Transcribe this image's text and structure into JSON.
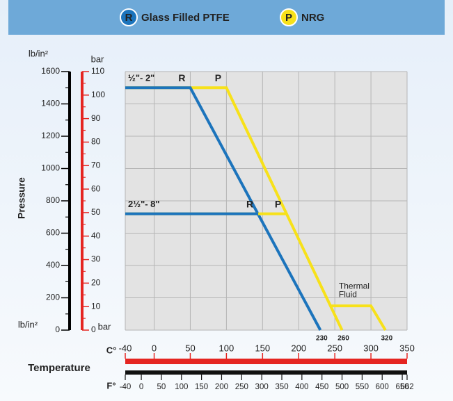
{
  "chart_data": {
    "type": "line",
    "legend": [
      {
        "marker": "R",
        "name": "Glass Filled PTFE",
        "color": "#1c74bc"
      },
      {
        "marker": "P",
        "name": "NRG",
        "color": "#f7e11a"
      }
    ],
    "ylabel": "Pressure",
    "y_unit_top": "lb/in²",
    "y_unit_bottom": "lb/in²",
    "y2_unit_top": "bar",
    "y2_unit_bottom": "bar",
    "ylim": [
      0,
      1600
    ],
    "yticks": [
      0,
      200,
      400,
      600,
      800,
      1000,
      1200,
      1400,
      1600
    ],
    "yminorticks": [
      100,
      300,
      500,
      700,
      900,
      1100,
      1300,
      1500
    ],
    "y2lim": [
      0,
      110
    ],
    "y2ticks": [
      0,
      10,
      20,
      30,
      40,
      50,
      60,
      70,
      80,
      90,
      100,
      110
    ],
    "y2minorticks": [
      5,
      15,
      25,
      35,
      45,
      55,
      65,
      75,
      85,
      95,
      105
    ],
    "xlabel": "Temperature",
    "x_unit": "C°",
    "xlim": [
      -40,
      350
    ],
    "xticks": [
      -40,
      0,
      50,
      100,
      150,
      200,
      250,
      300,
      350
    ],
    "x2_unit": "F°",
    "x2lim": [
      -40,
      662
    ],
    "x2ticks": [
      -40,
      0,
      50,
      100,
      150,
      200,
      250,
      300,
      350,
      400,
      450,
      500,
      550,
      600,
      650,
      662
    ],
    "grid": true,
    "groups": [
      {
        "label": "½\"- 2\"",
        "series": [
          {
            "marker": "R",
            "x": [
              -40,
              50,
              230
            ],
            "values": [
              1500,
              1500,
              0
            ]
          },
          {
            "marker": "P",
            "x": [
              -40,
              100,
              260
            ],
            "values": [
              1500,
              1500,
              0
            ]
          }
        ]
      },
      {
        "label": "2½\"- 8\"",
        "series": [
          {
            "marker": "R",
            "x": [
              -40,
              144
            ],
            "values": [
              720,
              720
            ]
          },
          {
            "marker": "P",
            "x": [
              -40,
              183
            ],
            "values": [
              720,
              720
            ]
          }
        ]
      }
    ],
    "thermal_fluid": {
      "lines": [
        "Thermal",
        "Fluid"
      ],
      "x": [
        244,
        300,
        320
      ],
      "values": [
        150,
        150,
        0
      ]
    },
    "x_annotations": [
      230,
      260,
      320
    ]
  }
}
